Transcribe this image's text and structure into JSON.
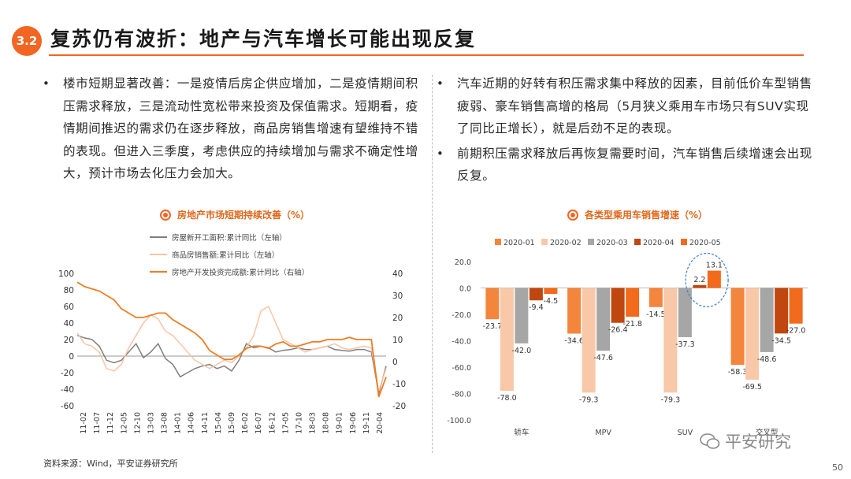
{
  "header": {
    "badge": "3.2",
    "title": "复苏仍有波折：地产与汽车增长可能出现反复"
  },
  "left_text": {
    "bullet": "•",
    "paragraph": "楼市短期显著改善：一是疫情后房企供应增加，二是疫情期间积压需求释放，三是流动性宽松带来投资及保值需求。短期看，疫情期间推迟的需求仍在逐步释放，商品房销售增速有望维持不错的表现。但进入三季度，考虑供应的持续增加与需求不确定性增大，预计市场去化压力会加大。"
  },
  "right_text": {
    "bullets": [
      "汽车近期的好转有积压需求集中释放的因素，目前低价车型销售疲弱、豪车销售高增的格局（5月狭义乘用车市场只有SUV实现了同比正增长），就是后劲不足的表现。",
      "前期积压需求释放后再恢复需要时间，汽车销售后续增速会出现反复。"
    ]
  },
  "chart_titles": {
    "left": "房地产市场短期持续改善（%）",
    "right": "各类型乘用车销售增速（%）"
  },
  "chart_data": [
    {
      "type": "line",
      "title": "房地产市场短期持续改善（%）",
      "x_ticks": [
        "11-02",
        "11-07",
        "11-12",
        "12-05",
        "12-10",
        "13-03",
        "13-08",
        "14-01",
        "14-06",
        "14-11",
        "15-04",
        "15-09",
        "16-02",
        "16-07",
        "16-12",
        "17-05",
        "17-10",
        "18-03",
        "18-08",
        "19-01",
        "19-06",
        "19-11",
        "20-04"
      ],
      "y_left": {
        "range": [
          -60,
          100
        ],
        "ticks": [
          100,
          80,
          60,
          40,
          20,
          0,
          -20,
          -40,
          -60
        ]
      },
      "y_right": {
        "range": [
          -20,
          40
        ],
        "ticks": [
          40,
          30,
          20,
          10,
          0,
          -10,
          -20
        ]
      },
      "series": [
        {
          "name": "房屋新开工面积:累计同比（左轴）",
          "axis": "left",
          "color": "#7f7f7f",
          "values": [
            25,
            22,
            20,
            12,
            -5,
            -8,
            -5,
            5,
            15,
            -2,
            5,
            15,
            -3,
            -10,
            -25,
            -20,
            -15,
            -12,
            -10,
            -15,
            -12,
            -18,
            -5,
            15,
            10,
            12,
            10,
            5,
            7,
            8,
            10,
            8,
            8,
            10,
            12,
            8,
            7,
            6,
            8,
            8,
            5,
            -45,
            -12
          ]
        },
        {
          "name": "商品房销售额:累计同比（左轴）",
          "axis": "left",
          "color": "#f8c4a6",
          "values": [
            28,
            15,
            12,
            5,
            -15,
            -18,
            -10,
            10,
            25,
            40,
            50,
            45,
            30,
            25,
            15,
            5,
            -5,
            -10,
            -15,
            -10,
            -5,
            -8,
            0,
            10,
            25,
            55,
            60,
            40,
            20,
            15,
            10,
            5,
            8,
            10,
            12,
            15,
            10,
            8,
            10,
            12,
            10,
            -42,
            -15
          ]
        },
        {
          "name": "房地产开发投资完成额:累计同比（右轴）",
          "axis": "right",
          "color": "#f07c22",
          "values": [
            36,
            34,
            33,
            32,
            30,
            28,
            24,
            22,
            20,
            20,
            21,
            22,
            22,
            19,
            17,
            15,
            13,
            10,
            5,
            3,
            1,
            1,
            3,
            6,
            7,
            7,
            6,
            8,
            9,
            7,
            7,
            8,
            9,
            9,
            10,
            10,
            10,
            11,
            10,
            10,
            10,
            -16,
            -7
          ]
        }
      ]
    },
    {
      "type": "bar",
      "title": "各类型乘用车销售增速（%）",
      "categories": [
        "轿车",
        "MPV",
        "SUV",
        "交叉型"
      ],
      "y_range": [
        -100,
        20
      ],
      "y_ticks": [
        "20.0",
        "0.0",
        "-20.0",
        "-40.0",
        "-60.0",
        "-80.0",
        "-100.0"
      ],
      "series": [
        {
          "name": "2020-01",
          "color": "#f4853d",
          "values": [
            -23.7,
            -34.6,
            -14.5,
            -58.3
          ]
        },
        {
          "name": "2020-02",
          "color": "#f8c8a8",
          "values": [
            -78.0,
            -79.3,
            -79.3,
            -69.5
          ]
        },
        {
          "name": "2020-03",
          "color": "#a6a6a6",
          "values": [
            -42.0,
            -47.6,
            -37.3,
            -48.6
          ]
        },
        {
          "name": "2020-04",
          "color": "#c0470f",
          "values": [
            -9.4,
            -26.4,
            2.2,
            -34.5
          ]
        },
        {
          "name": "2020-05",
          "color": "#f26a1c",
          "values": [
            -4.5,
            -21.8,
            13.1,
            -27.0
          ]
        }
      ]
    }
  ],
  "footer": {
    "source": "资料来源：Wind，平安证券研究所",
    "watermark": "平安研究",
    "page_number": "50"
  },
  "colors": {
    "accent": "#f26522",
    "title_text": "#e0671b"
  }
}
